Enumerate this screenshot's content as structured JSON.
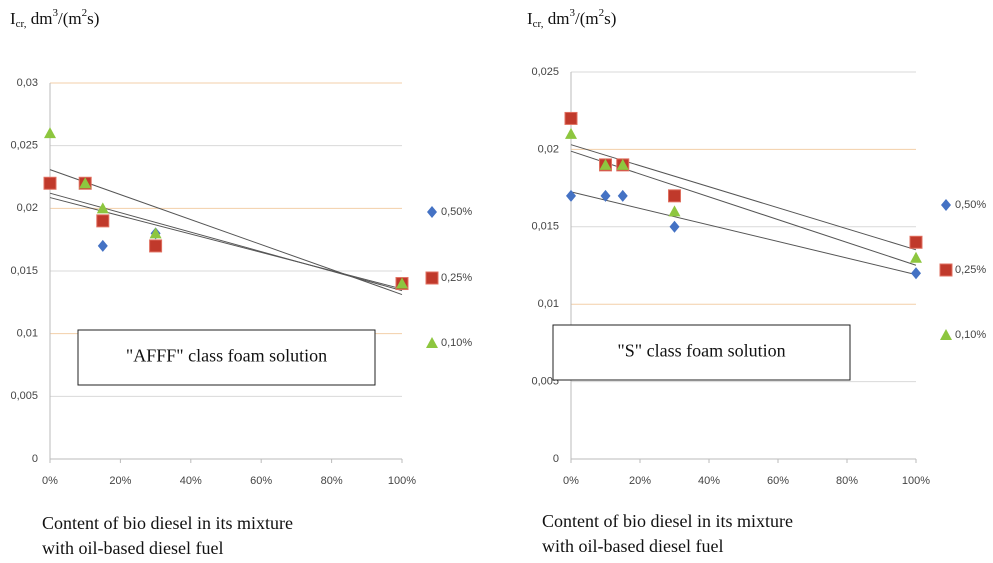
{
  "chart_data": [
    {
      "type": "scatter",
      "y_label": [
        "I",
        "cr,",
        " dm",
        "3",
        "/(m",
        "2",
        "s)"
      ],
      "x_label": [
        "Content of bio diesel in its mixture",
        "with oil-based diesel fuel"
      ],
      "annotation": "\"AFFF\" class foam solution",
      "x": [
        0,
        10,
        15,
        30,
        100
      ],
      "xlim": [
        0,
        100
      ],
      "xticks": [
        {
          "value": 0,
          "label": "0%"
        },
        {
          "value": 20,
          "label": "20%"
        },
        {
          "value": 40,
          "label": "40%"
        },
        {
          "value": 60,
          "label": "60%"
        },
        {
          "value": 80,
          "label": "80%"
        },
        {
          "value": 100,
          "label": "100%"
        }
      ],
      "ylim": [
        0,
        0.03
      ],
      "yticks": [
        0,
        {
          "value": 0.005,
          "label": "0,005"
        },
        {
          "value": 0.01,
          "label": "0,01"
        },
        {
          "value": 0.015,
          "label": "0,015"
        },
        {
          "value": 0.02,
          "label": "0,02"
        },
        {
          "value": 0.025,
          "label": "0,025"
        },
        {
          "value": 0.03,
          "label": "0,03"
        }
      ],
      "grid": true,
      "trendline": "linear",
      "legend": "right",
      "series": [
        {
          "name": "0,50%",
          "color": "#4472c4",
          "marker": "diamond",
          "values": [
            0.022,
            0.022,
            0.017,
            0.018,
            0.014
          ]
        },
        {
          "name": "0,25%",
          "color": "#c0392b",
          "marker": "square",
          "values": [
            0.022,
            0.022,
            0.019,
            0.017,
            0.014
          ]
        },
        {
          "name": "0,10%",
          "color": "#8dc63f",
          "marker": "triangle",
          "values": [
            0.026,
            0.022,
            0.02,
            0.018,
            0.014
          ]
        }
      ]
    },
    {
      "type": "scatter",
      "y_label": [
        "I",
        "cr,",
        " dm",
        "3",
        "/(m",
        "2",
        "s)"
      ],
      "x_label": [
        "Content of bio diesel in its mixture",
        "with oil-based diesel fuel"
      ],
      "annotation": "\"S\" class foam solution",
      "x": [
        0,
        10,
        15,
        30,
        100
      ],
      "xlim": [
        0,
        100
      ],
      "xticks": [
        {
          "value": 0,
          "label": "0%"
        },
        {
          "value": 20,
          "label": "20%"
        },
        {
          "value": 40,
          "label": "40%"
        },
        {
          "value": 60,
          "label": "60%"
        },
        {
          "value": 80,
          "label": "80%"
        },
        {
          "value": 100,
          "label": "100%"
        }
      ],
      "ylim": [
        0,
        0.025
      ],
      "yticks": [
        0,
        {
          "value": 0.005,
          "label": "0,005"
        },
        {
          "value": 0.01,
          "label": "0,01"
        },
        {
          "value": 0.015,
          "label": "0,015"
        },
        {
          "value": 0.02,
          "label": "0,02"
        },
        {
          "value": 0.025,
          "label": "0,025"
        }
      ],
      "grid": true,
      "trendline": "linear",
      "legend": "right",
      "series": [
        {
          "name": "0,50%",
          "color": "#4472c4",
          "marker": "diamond",
          "values": [
            0.017,
            0.017,
            0.017,
            0.015,
            0.012
          ]
        },
        {
          "name": "0,25%",
          "color": "#c0392b",
          "marker": "square",
          "values": [
            0.022,
            0.019,
            0.019,
            0.017,
            0.014
          ]
        },
        {
          "name": "0,10%",
          "color": "#8dc63f",
          "marker": "triangle",
          "values": [
            0.021,
            0.019,
            0.019,
            0.016,
            0.013
          ]
        }
      ]
    }
  ]
}
